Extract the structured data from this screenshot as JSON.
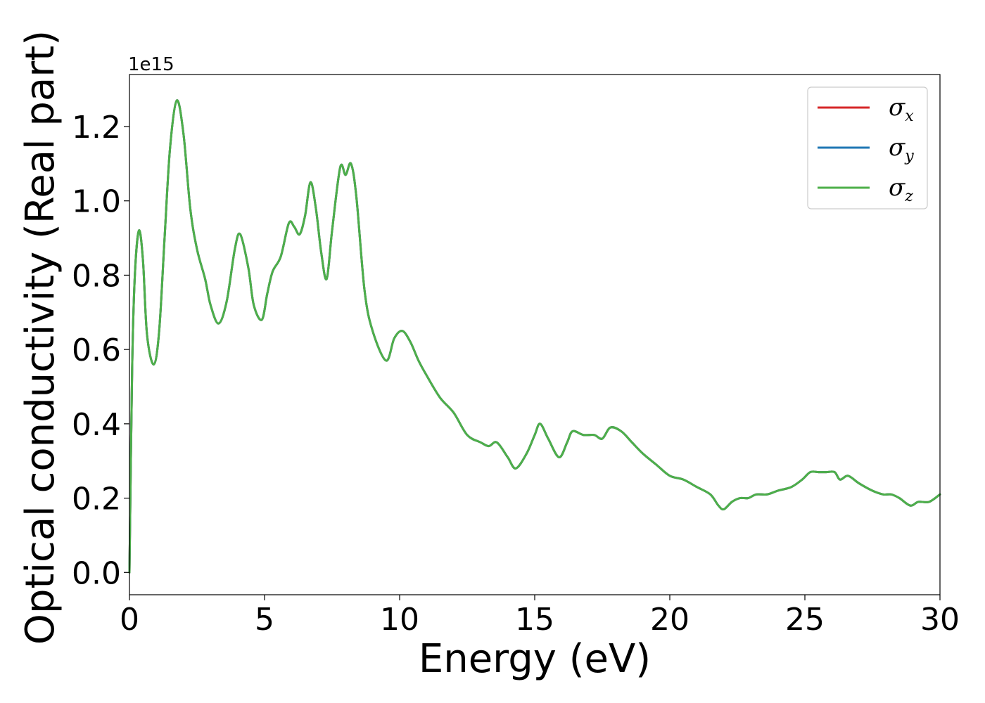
{
  "chart_data": {
    "type": "line",
    "xlabel": "Energy (eV)",
    "ylabel": "Optical conductivity (Real part)",
    "y_offset_text": "1e15",
    "y_scale_factor": 1000000000000000.0,
    "xlim": [
      0,
      30
    ],
    "ylim": [
      -0.06,
      1.34
    ],
    "x_ticks": [
      0,
      5,
      10,
      15,
      20,
      25,
      30
    ],
    "x_tick_labels": [
      "0",
      "5",
      "10",
      "15",
      "20",
      "25",
      "30"
    ],
    "y_ticks": [
      0.0,
      0.2,
      0.4,
      0.6,
      0.8,
      1.0,
      1.2
    ],
    "y_tick_labels": [
      "0.0",
      "0.2",
      "0.4",
      "0.6",
      "0.8",
      "1.0",
      "1.2"
    ],
    "grid": false,
    "legend_position": "top-right",
    "x": [
      0,
      0.1,
      0.2,
      0.35,
      0.5,
      0.65,
      0.9,
      1.1,
      1.3,
      1.5,
      1.75,
      2.0,
      2.25,
      2.5,
      2.8,
      3.0,
      3.3,
      3.6,
      3.9,
      4.1,
      4.4,
      4.6,
      4.9,
      5.1,
      5.3,
      5.6,
      5.9,
      6.1,
      6.3,
      6.5,
      6.7,
      6.9,
      7.1,
      7.3,
      7.5,
      7.8,
      8.0,
      8.2,
      8.4,
      8.7,
      9.0,
      9.5,
      9.8,
      10.1,
      10.4,
      10.7,
      11.0,
      11.5,
      12.0,
      12.5,
      13.0,
      13.3,
      13.6,
      14.0,
      14.3,
      14.7,
      15.0,
      15.2,
      15.5,
      15.9,
      16.2,
      16.4,
      16.8,
      17.2,
      17.5,
      17.8,
      18.2,
      18.6,
      19.0,
      19.5,
      20.0,
      20.5,
      21.0,
      21.5,
      21.8,
      22.0,
      22.3,
      22.6,
      22.9,
      23.2,
      23.6,
      24.0,
      24.5,
      24.9,
      25.2,
      25.5,
      25.8,
      26.1,
      26.3,
      26.6,
      27.0,
      27.5,
      27.9,
      28.2,
      28.5,
      28.9,
      29.2,
      29.6,
      30.0
    ],
    "series": [
      {
        "name": "σ_x",
        "color": "#d62728",
        "values": [
          0.0,
          0.55,
          0.8,
          0.92,
          0.84,
          0.64,
          0.56,
          0.65,
          0.9,
          1.14,
          1.27,
          1.18,
          0.98,
          0.87,
          0.79,
          0.72,
          0.67,
          0.73,
          0.87,
          0.91,
          0.82,
          0.72,
          0.68,
          0.75,
          0.81,
          0.85,
          0.94,
          0.93,
          0.91,
          0.96,
          1.05,
          0.98,
          0.86,
          0.79,
          0.92,
          1.09,
          1.07,
          1.1,
          1.01,
          0.76,
          0.65,
          0.57,
          0.63,
          0.65,
          0.62,
          0.57,
          0.53,
          0.47,
          0.43,
          0.37,
          0.35,
          0.34,
          0.35,
          0.31,
          0.28,
          0.32,
          0.37,
          0.4,
          0.36,
          0.31,
          0.35,
          0.38,
          0.37,
          0.37,
          0.36,
          0.39,
          0.38,
          0.35,
          0.32,
          0.29,
          0.26,
          0.25,
          0.23,
          0.21,
          0.18,
          0.17,
          0.19,
          0.2,
          0.2,
          0.21,
          0.21,
          0.22,
          0.23,
          0.25,
          0.27,
          0.27,
          0.27,
          0.27,
          0.25,
          0.26,
          0.24,
          0.22,
          0.21,
          0.21,
          0.2,
          0.18,
          0.19,
          0.19,
          0.21
        ]
      },
      {
        "name": "σ_y",
        "color": "#1f77b4",
        "values": [
          0.0,
          0.55,
          0.8,
          0.92,
          0.84,
          0.64,
          0.56,
          0.65,
          0.9,
          1.14,
          1.27,
          1.18,
          0.98,
          0.87,
          0.79,
          0.72,
          0.67,
          0.73,
          0.87,
          0.91,
          0.82,
          0.72,
          0.68,
          0.75,
          0.81,
          0.85,
          0.94,
          0.93,
          0.91,
          0.96,
          1.05,
          0.98,
          0.86,
          0.79,
          0.92,
          1.09,
          1.07,
          1.1,
          1.01,
          0.76,
          0.65,
          0.57,
          0.63,
          0.65,
          0.62,
          0.57,
          0.53,
          0.47,
          0.43,
          0.37,
          0.35,
          0.34,
          0.35,
          0.31,
          0.28,
          0.32,
          0.37,
          0.4,
          0.36,
          0.31,
          0.35,
          0.38,
          0.37,
          0.37,
          0.36,
          0.39,
          0.38,
          0.35,
          0.32,
          0.29,
          0.26,
          0.25,
          0.23,
          0.21,
          0.18,
          0.17,
          0.19,
          0.2,
          0.2,
          0.21,
          0.21,
          0.22,
          0.23,
          0.25,
          0.27,
          0.27,
          0.27,
          0.27,
          0.25,
          0.26,
          0.24,
          0.22,
          0.21,
          0.21,
          0.2,
          0.18,
          0.19,
          0.19,
          0.21
        ]
      },
      {
        "name": "σ_z",
        "color": "#4daf4a",
        "values": [
          0.0,
          0.55,
          0.8,
          0.92,
          0.84,
          0.64,
          0.56,
          0.65,
          0.9,
          1.14,
          1.27,
          1.18,
          0.98,
          0.87,
          0.79,
          0.72,
          0.67,
          0.73,
          0.87,
          0.91,
          0.82,
          0.72,
          0.68,
          0.75,
          0.81,
          0.85,
          0.94,
          0.93,
          0.91,
          0.96,
          1.05,
          0.98,
          0.86,
          0.79,
          0.92,
          1.09,
          1.07,
          1.1,
          1.01,
          0.76,
          0.65,
          0.57,
          0.63,
          0.65,
          0.62,
          0.57,
          0.53,
          0.47,
          0.43,
          0.37,
          0.35,
          0.34,
          0.35,
          0.31,
          0.28,
          0.32,
          0.37,
          0.4,
          0.36,
          0.31,
          0.35,
          0.38,
          0.37,
          0.37,
          0.36,
          0.39,
          0.38,
          0.35,
          0.32,
          0.29,
          0.26,
          0.25,
          0.23,
          0.21,
          0.18,
          0.17,
          0.19,
          0.2,
          0.2,
          0.21,
          0.21,
          0.22,
          0.23,
          0.25,
          0.27,
          0.27,
          0.27,
          0.27,
          0.25,
          0.26,
          0.24,
          0.22,
          0.21,
          0.21,
          0.2,
          0.18,
          0.19,
          0.19,
          0.21
        ]
      }
    ],
    "legend": [
      {
        "symbol": "σ",
        "subscript": "x",
        "color": "#d62728"
      },
      {
        "symbol": "σ",
        "subscript": "y",
        "color": "#1f77b4"
      },
      {
        "symbol": "σ",
        "subscript": "z",
        "color": "#4daf4a"
      }
    ]
  }
}
